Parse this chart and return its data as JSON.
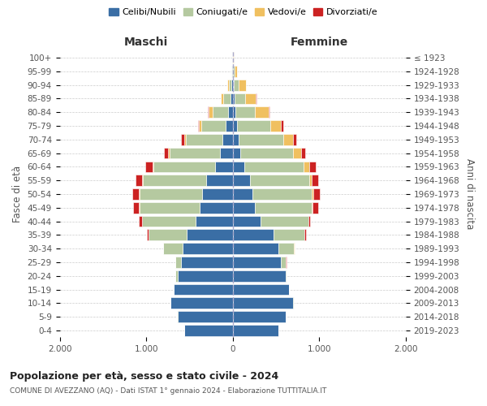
{
  "age_groups": [
    "0-4",
    "5-9",
    "10-14",
    "15-19",
    "20-24",
    "25-29",
    "30-34",
    "35-39",
    "40-44",
    "45-49",
    "50-54",
    "55-59",
    "60-64",
    "65-69",
    "70-74",
    "75-79",
    "80-84",
    "85-89",
    "90-94",
    "95-99",
    "100+"
  ],
  "birth_years": [
    "2019-2023",
    "2014-2018",
    "2009-2013",
    "2004-2008",
    "1999-2003",
    "1994-1998",
    "1989-1993",
    "1984-1988",
    "1979-1983",
    "1974-1978",
    "1969-1973",
    "1964-1968",
    "1959-1963",
    "1954-1958",
    "1949-1953",
    "1944-1948",
    "1939-1943",
    "1934-1938",
    "1929-1933",
    "1924-1928",
    "≤ 1923"
  ],
  "colors": {
    "celibinubili": "#3a6ea5",
    "coniugati": "#b5c9a0",
    "vedovi": "#f0c060",
    "divorziati": "#cc2222"
  },
  "male": {
    "celibinubili": [
      560,
      640,
      720,
      680,
      640,
      600,
      580,
      530,
      430,
      380,
      350,
      310,
      200,
      150,
      120,
      80,
      55,
      30,
      15,
      5,
      2
    ],
    "coniugati": [
      1,
      2,
      3,
      5,
      20,
      60,
      220,
      440,
      620,
      700,
      730,
      730,
      720,
      580,
      420,
      280,
      180,
      80,
      30,
      8,
      2
    ],
    "vedovi": [
      0,
      0,
      0,
      0,
      0,
      0,
      1,
      1,
      2,
      3,
      4,
      5,
      8,
      15,
      25,
      30,
      45,
      25,
      15,
      5,
      1
    ],
    "divorziati": [
      0,
      0,
      0,
      0,
      1,
      2,
      5,
      20,
      30,
      70,
      80,
      80,
      80,
      50,
      30,
      10,
      8,
      3,
      2,
      0,
      0
    ]
  },
  "female": {
    "celibinubili": [
      530,
      610,
      700,
      650,
      610,
      560,
      530,
      470,
      320,
      260,
      230,
      200,
      130,
      90,
      70,
      50,
      35,
      25,
      15,
      5,
      2
    ],
    "coniugati": [
      0,
      1,
      2,
      4,
      15,
      55,
      180,
      360,
      550,
      650,
      680,
      680,
      690,
      610,
      510,
      380,
      220,
      120,
      55,
      15,
      2
    ],
    "vedovi": [
      0,
      0,
      0,
      0,
      0,
      0,
      1,
      2,
      5,
      10,
      20,
      30,
      60,
      90,
      120,
      130,
      160,
      120,
      80,
      30,
      5
    ],
    "divorziati": [
      0,
      0,
      0,
      0,
      1,
      2,
      5,
      15,
      20,
      70,
      80,
      80,
      80,
      50,
      30,
      20,
      10,
      5,
      2,
      0,
      0
    ]
  },
  "title1": "Popolazione per età, sesso e stato civile - 2024",
  "title2": "COMUNE DI AVEZZANO (AQ) - Dati ISTAT 1° gennaio 2024 - Elaborazione TUTTITALIA.IT",
  "xlabel_left": "Maschi",
  "xlabel_right": "Femmine",
  "ylabel_left": "Fasce di età",
  "ylabel_right": "Anni di nascita",
  "xlim": 2000,
  "xtick_labels": [
    "2.000",
    "1.000",
    "0",
    "1.000",
    "2.000"
  ],
  "xtick_vals": [
    -2000,
    -1000,
    0,
    1000,
    2000
  ],
  "legend_labels": [
    "Celibi/Nubili",
    "Coniugati/e",
    "Vedovi/e",
    "Divorziati/e"
  ],
  "background_color": "#ffffff",
  "grid_color": "#cccccc"
}
